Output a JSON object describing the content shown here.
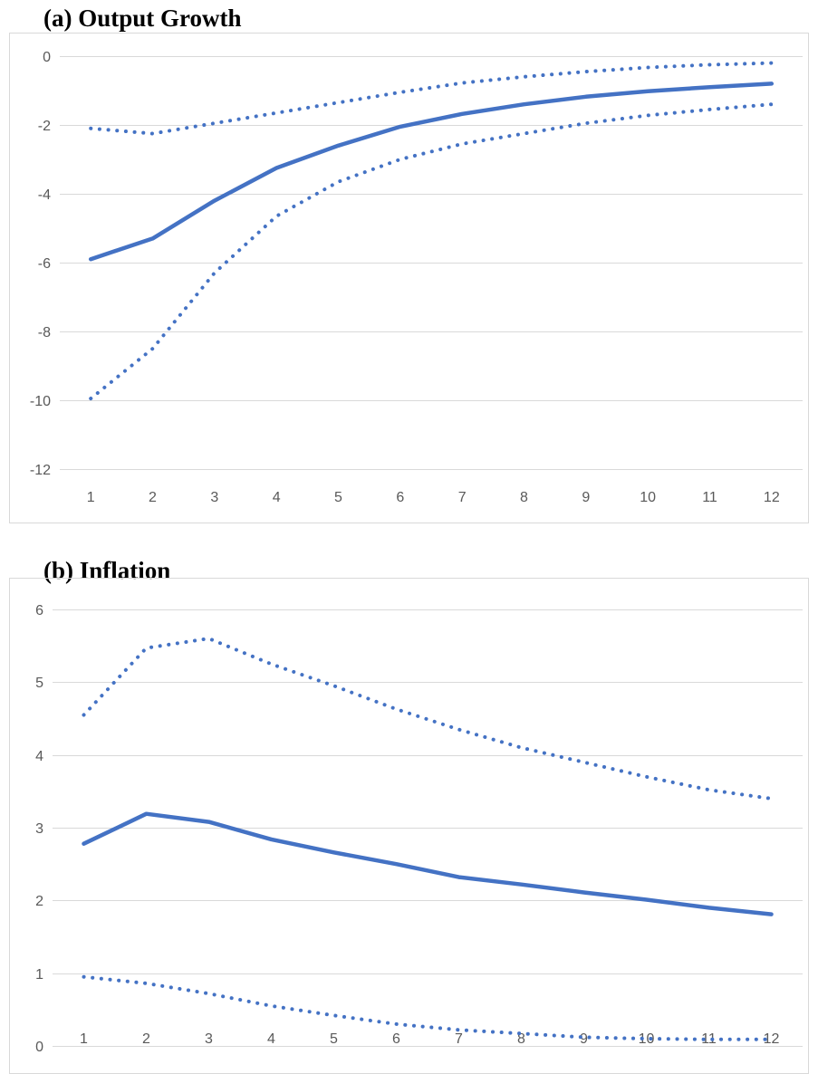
{
  "chart_data": [
    {
      "type": "line",
      "title": "(a) Output Growth",
      "x": [
        1,
        2,
        3,
        4,
        5,
        6,
        7,
        8,
        9,
        10,
        11,
        12
      ],
      "yticks": [
        0,
        -2,
        -4,
        -6,
        -8,
        -10,
        -12
      ],
      "ylim": [
        -12,
        0
      ],
      "grid": true,
      "series": [
        {
          "style": "solid",
          "values": [
            -5.9,
            -5.3,
            -4.2,
            -3.25,
            -2.6,
            -2.05,
            -1.68,
            -1.4,
            -1.18,
            -1.02,
            -0.9,
            -0.8
          ]
        },
        {
          "style": "dotted",
          "values": [
            -2.1,
            -2.25,
            -1.95,
            -1.65,
            -1.35,
            -1.05,
            -0.78,
            -0.6,
            -0.45,
            -0.33,
            -0.25,
            -0.2
          ]
        },
        {
          "style": "dotted",
          "values": [
            -9.95,
            -8.5,
            -6.3,
            -4.65,
            -3.65,
            -3.0,
            -2.55,
            -2.25,
            -1.95,
            -1.72,
            -1.55,
            -1.4
          ]
        }
      ],
      "color": "#4472c4"
    },
    {
      "type": "line",
      "title": "(b) Inflation",
      "x": [
        1,
        2,
        3,
        4,
        5,
        6,
        7,
        8,
        9,
        10,
        11,
        12
      ],
      "yticks": [
        6,
        5,
        4,
        3,
        2,
        1,
        0
      ],
      "ylim": [
        0,
        6
      ],
      "grid": true,
      "series": [
        {
          "style": "solid",
          "values": [
            2.78,
            3.19,
            3.08,
            2.84,
            2.66,
            2.5,
            2.32,
            2.22,
            2.11,
            2.01,
            1.9,
            1.81
          ]
        },
        {
          "style": "dotted",
          "values": [
            4.55,
            5.47,
            5.6,
            5.25,
            4.95,
            4.63,
            4.35,
            4.1,
            3.9,
            3.7,
            3.52,
            3.4
          ]
        },
        {
          "style": "dotted",
          "values": [
            0.95,
            0.86,
            0.72,
            0.55,
            0.42,
            0.3,
            0.22,
            0.17,
            0.12,
            0.1,
            0.09,
            0.09
          ]
        }
      ],
      "color": "#4472c4"
    }
  ]
}
